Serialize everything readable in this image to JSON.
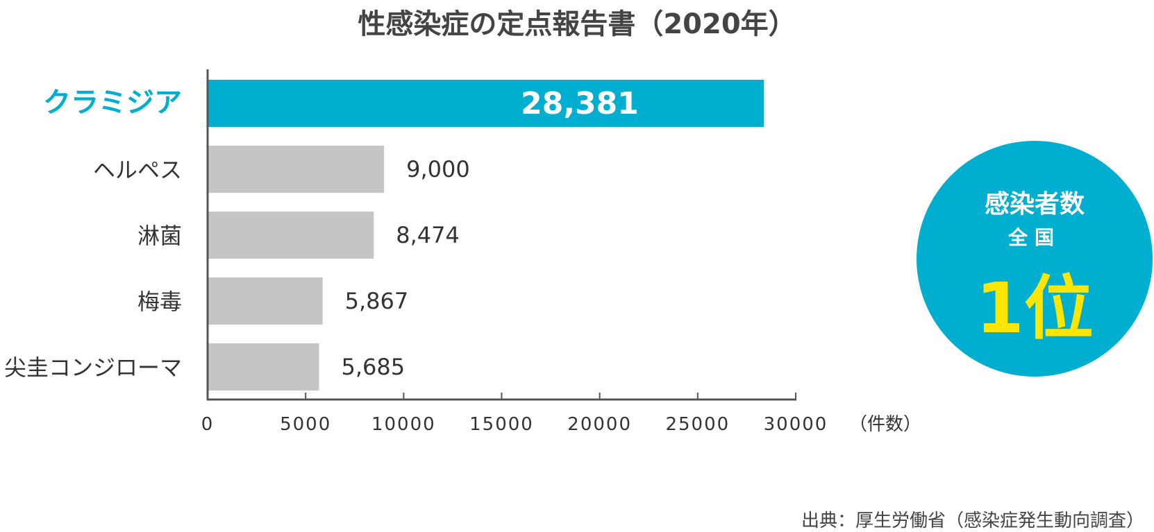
{
  "chart_data": {
    "type": "bar",
    "orientation": "horizontal",
    "title": "性感染症の定点報告書（2020年）",
    "categories": [
      "クラミジア",
      "ヘルペス",
      "淋菌",
      "梅毒",
      "尖圭コンジローマ"
    ],
    "values": [
      28381,
      9000,
      8474,
      5867,
      5685
    ],
    "value_labels": [
      "28,381",
      "9,000",
      "8,474",
      "5,867",
      "5,685"
    ],
    "highlight_index": 0,
    "xlim": [
      0,
      30000
    ],
    "xticks": [
      0,
      5000,
      10000,
      15000,
      20000,
      25000,
      30000
    ],
    "xlabel": "（件数）",
    "grid": false,
    "colors": {
      "highlight": "#00aed0",
      "normal": "#c4c5c7"
    }
  },
  "badge": {
    "line1": "感染者数",
    "line2": "全国",
    "line3": "1位",
    "bg_color": "#00aed0",
    "accent_color": "#ffe600"
  },
  "source": "出典：厚生労働省（感染症発生動向調査）"
}
